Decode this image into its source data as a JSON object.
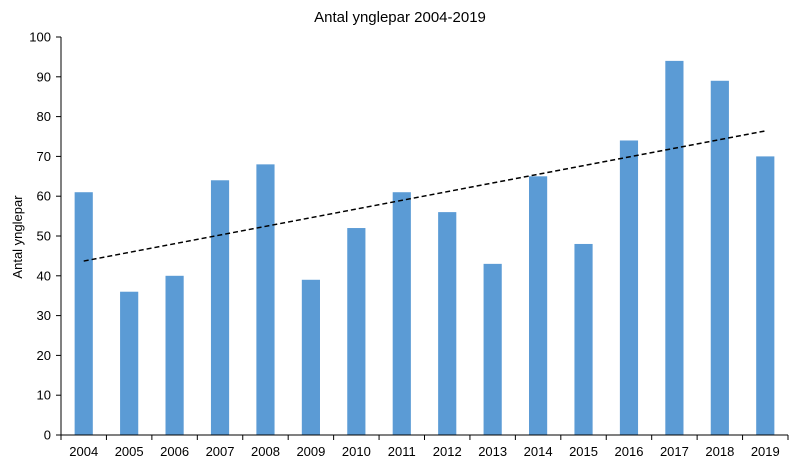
{
  "chart_data": {
    "type": "bar",
    "title": "Antal ynglepar 2004-2019",
    "xlabel": "",
    "ylabel": "Antal ynglepar",
    "categories": [
      "2004",
      "2005",
      "2006",
      "2007",
      "2008",
      "2009",
      "2010",
      "2011",
      "2012",
      "2013",
      "2014",
      "2015",
      "2016",
      "2017",
      "2018",
      "2019"
    ],
    "series": [
      {
        "name": "Antal ynglepar",
        "values": [
          61,
          36,
          40,
          64,
          68,
          39,
          52,
          61,
          56,
          43,
          65,
          48,
          74,
          94,
          89,
          70
        ]
      }
    ],
    "trendline": {
      "type": "linear",
      "style": "dashed",
      "start_value": 43.7,
      "end_value": 76.4
    },
    "ylim": [
      0,
      100
    ],
    "yticks": [
      0,
      10,
      20,
      30,
      40,
      50,
      60,
      70,
      80,
      90,
      100
    ],
    "grid": false,
    "legend": "none",
    "colors": {
      "bar": "#5B9BD5",
      "trendline": "#000000",
      "axis": "#000000"
    }
  }
}
